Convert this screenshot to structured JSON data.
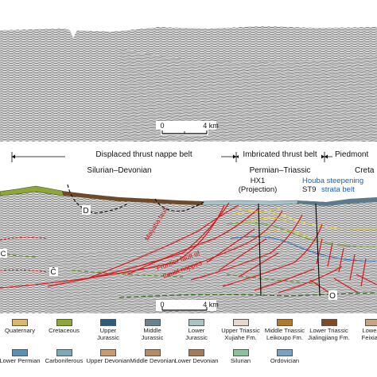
{
  "upper_panel": {
    "scale_start": "0",
    "scale_end": "4 km"
  },
  "belts": [
    {
      "name": "Displaced thrust nappe belt",
      "formation": "Silurian–Devonian"
    },
    {
      "name": "Imbricated thrust belt",
      "formation": "Permian–Triassic"
    },
    {
      "name": "Piedmont",
      "formation": "Creta"
    }
  ],
  "annotations": {
    "well_hx1_name": "HX1",
    "well_hx1_note": "(Projection)",
    "well_st9": "ST9",
    "houba_line1": "Houba steepening",
    "houba_line2": "strata belt",
    "maijiaba_fault": "Maijiaba fault",
    "frontier_fault_line1": "Frontier fault of",
    "frontier_fault_line2": "thrust nappes",
    "horizon_d": "D",
    "horizon_c_left": "C",
    "horizon_c_mid": "Ĉ",
    "horizon_o": "O"
  },
  "lower_panel": {
    "scale_start": "0",
    "scale_end": "4 km"
  },
  "legend": [
    {
      "label_lines": [
        "Quaternary"
      ],
      "color": "#d9b86c"
    },
    {
      "label_lines": [
        "Cretaceous"
      ],
      "color": "#8fa63a"
    },
    {
      "label_lines": [
        "Upper",
        "Jurassic"
      ],
      "color": "#2f5a78"
    },
    {
      "label_lines": [
        "Middle",
        "Jurassic"
      ],
      "color": "#6d8290"
    },
    {
      "label_lines": [
        "Lower",
        "Jurassic"
      ],
      "color": "#a9c2c6"
    },
    {
      "label_lines": [
        "Upper Triassic",
        "Xujiahe Fm."
      ],
      "color": "#e6d8cf"
    },
    {
      "label_lines": [
        "Middle Triassic",
        "Leikoupo Fm."
      ],
      "color": "#b07a2e"
    },
    {
      "label_lines": [
        "Lower Triassic",
        "Jialingjiang Fm."
      ],
      "color": "#7a4a2a"
    },
    {
      "label_lines": [
        "Lower T",
        "Feixiang"
      ],
      "color": "#c4a484"
    },
    {
      "label_lines": [
        "Lower Permian"
      ],
      "color": "#5c8fb3"
    },
    {
      "label_lines": [
        "Carboniferous"
      ],
      "color": "#7fa7b5"
    },
    {
      "label_lines": [
        "Upper Devonian"
      ],
      "color": "#c99874"
    },
    {
      "label_lines": [
        "Middle Devonian"
      ],
      "color": "#b58a66"
    },
    {
      "label_lines": [
        "Lower Devonian"
      ],
      "color": "#a37a5c"
    },
    {
      "label_lines": [
        "Silurian"
      ],
      "color": "#8fbf9a"
    },
    {
      "label_lines": [
        "Ordovician"
      ],
      "color": "#7aa0c2"
    }
  ]
}
